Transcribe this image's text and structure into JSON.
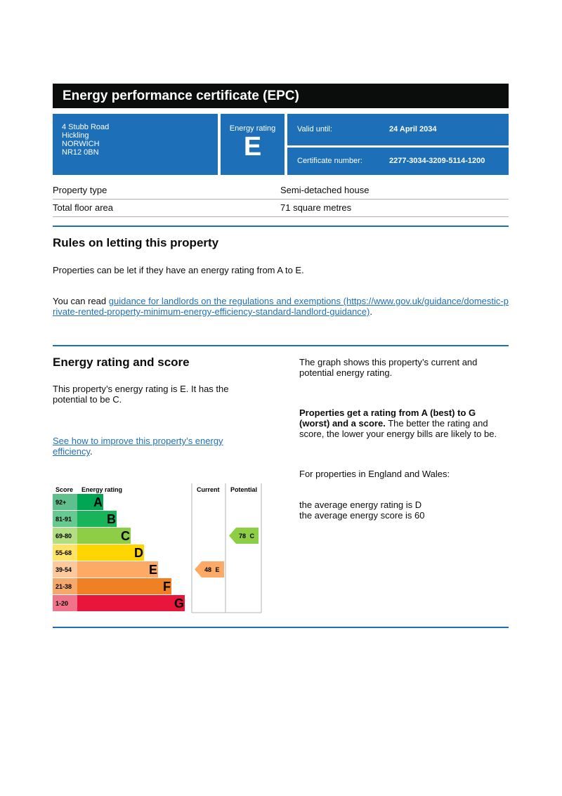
{
  "header": {
    "title": "Energy performance certificate (EPC)",
    "address": [
      "4 Stubb Road",
      "Hickling",
      "NORWICH",
      "NR12 0BN"
    ],
    "energy_rating_label": "Energy rating",
    "energy_rating": "E",
    "valid_until_label": "Valid until:",
    "valid_until": "24 April 2034",
    "certificate_number_label": "Certificate number:",
    "certificate_number": "2277-3034-3209-5114-1200"
  },
  "property": {
    "rows": [
      [
        "Property type",
        "Semi-detached house"
      ],
      [
        "Total floor area",
        "71 square metres"
      ]
    ]
  },
  "letting": {
    "heading": "Rules on letting this property",
    "text": "Properties can be let if they have an energy rating from A to E.",
    "guidance_prefix": "You can read ",
    "guidance_link": "guidance for landlords on the regulations and exemptions (https://www.gov.uk/guidance/domestic-private-rented-property-minimum-energy-efficiency-standard-landlord-guidance)",
    "guidance_suffix": "."
  },
  "rating": {
    "heading": "Energy rating and score",
    "text": "This property’s energy rating is E. It has the potential to be C.",
    "improve_link": "See how to improve this property’s energy efficiency",
    "improve_suffix": ".",
    "graph_text": "The graph shows this property’s current and potential energy rating.",
    "bold_text": "Properties get a rating from A (best) to G (worst) and a score.",
    "rest_text": " The better the rating and score, the lower your energy bills are likely to be.",
    "regions_text": "For properties in England and Wales:",
    "average_rating": "the average energy rating is D",
    "average_score": "the average energy score is 60"
  },
  "chart": {
    "headers": [
      "Score",
      "Energy rating",
      "Current",
      "Potential"
    ],
    "bands": [
      {
        "score": "92+",
        "letter": "A"
      },
      {
        "score": "81-91",
        "letter": "B"
      },
      {
        "score": "69-80",
        "letter": "C"
      },
      {
        "score": "55-68",
        "letter": "D"
      },
      {
        "score": "39-54",
        "letter": "E"
      },
      {
        "score": "21-38",
        "letter": "F"
      },
      {
        "score": "1-20",
        "letter": "G"
      }
    ],
    "current": {
      "score": 48,
      "letter": "E"
    },
    "potential": {
      "score": 78,
      "letter": "C"
    }
  }
}
